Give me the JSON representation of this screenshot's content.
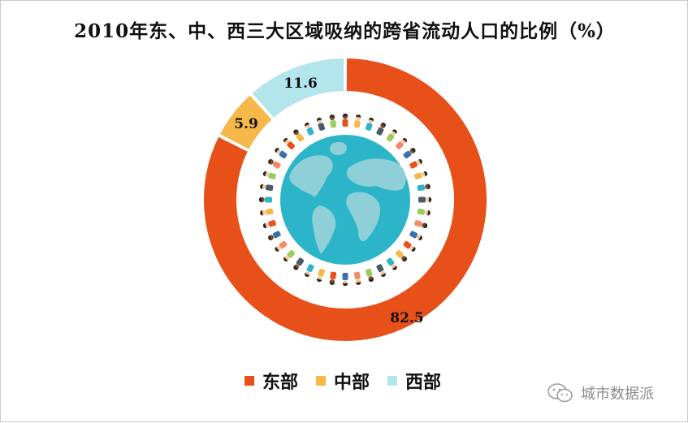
{
  "chart_data": {
    "type": "pie",
    "title": "2010年东、中、西三大区域吸纳的跨省流动人口的比例（%）",
    "categories": [
      "东部",
      "中部",
      "西部"
    ],
    "values": [
      82.5,
      5.9,
      11.6
    ],
    "colors": [
      "#E8501A",
      "#F6B84A",
      "#B2E5EC"
    ],
    "legend_position": "bottom"
  },
  "watermark": {
    "text": "城市数据派",
    "icon": "wechat-icon"
  }
}
